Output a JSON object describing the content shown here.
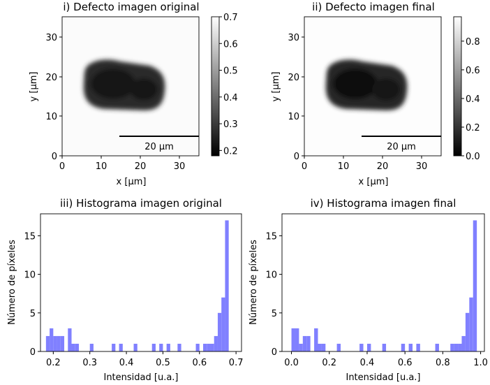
{
  "chart_data": [
    {
      "type": "heatmap",
      "title": "i) Defecto imagen original",
      "xlabel": "x [μm]",
      "ylabel": "y [μm]",
      "xlim": [
        0,
        35
      ],
      "ylim": [
        0,
        35
      ],
      "xticks": [
        0,
        10,
        20,
        30
      ],
      "yticks": [
        0,
        10,
        20,
        30
      ],
      "colormap": "gray",
      "colorbar": {
        "min": 0.18,
        "max": 0.7,
        "ticks": [
          "0.2",
          "0.3",
          "0.4",
          "0.5",
          "0.6",
          "0.7"
        ],
        "tick_values": [
          0.2,
          0.3,
          0.4,
          0.5,
          0.6,
          0.7
        ]
      },
      "scalebar": {
        "label": "20 μm",
        "x_from": 14.5,
        "x_to": 34.5,
        "y": 5
      }
    },
    {
      "type": "heatmap",
      "title": "ii) Defecto imagen final",
      "xlabel": "x [μm]",
      "ylabel": "y [μm]",
      "xlim": [
        0,
        35
      ],
      "ylim": [
        0,
        35
      ],
      "xticks": [
        0,
        10,
        20,
        30
      ],
      "yticks": [
        0,
        10,
        20,
        30
      ],
      "colormap": "gray",
      "colorbar": {
        "min": 0.0,
        "max": 0.97,
        "ticks": [
          "0.0",
          "0.2",
          "0.4",
          "0.6",
          "0.8"
        ],
        "tick_values": [
          0.0,
          0.2,
          0.4,
          0.6,
          0.8
        ]
      },
      "scalebar": {
        "label": "20 μm",
        "x_from": 14.5,
        "x_to": 34.5,
        "y": 5
      }
    },
    {
      "type": "bar",
      "title": "iii) Histograma imagen original",
      "xlabel": "Intensidad [u.a.]",
      "ylabel": "Número de píxeles",
      "xlim": [
        0.165,
        0.715
      ],
      "ylim": [
        0,
        17.85
      ],
      "xticks": [
        "0.2",
        "0.3",
        "0.4",
        "0.5",
        "0.6",
        "0.7"
      ],
      "xtick_values": [
        0.2,
        0.3,
        0.4,
        0.5,
        0.6,
        0.7
      ],
      "yticks": [
        "0",
        "5",
        "10",
        "15"
      ],
      "ytick_values": [
        0,
        5,
        10,
        15
      ],
      "color": "#8080ff",
      "bin_edges": [
        0.18,
        0.19,
        0.2,
        0.21,
        0.22,
        0.23,
        0.24,
        0.25,
        0.26,
        0.27,
        0.28,
        0.29,
        0.3,
        0.31,
        0.32,
        0.33,
        0.34,
        0.35,
        0.36,
        0.37,
        0.38,
        0.39,
        0.4,
        0.41,
        0.42,
        0.43,
        0.44,
        0.45,
        0.46,
        0.47,
        0.48,
        0.49,
        0.5,
        0.51,
        0.52,
        0.53,
        0.54,
        0.55,
        0.56,
        0.57,
        0.58,
        0.59,
        0.6,
        0.61,
        0.62,
        0.63,
        0.64,
        0.65,
        0.66,
        0.67,
        0.68,
        0.69,
        0.7
      ],
      "counts": [
        2,
        3,
        2,
        2,
        2,
        0,
        3,
        1,
        1,
        0,
        0,
        0,
        1,
        0,
        0,
        0,
        0,
        0,
        1,
        0,
        1,
        0,
        0,
        0,
        1,
        0,
        0,
        0,
        0,
        1,
        0,
        1,
        0,
        1,
        0,
        0,
        1,
        0,
        0,
        0,
        0,
        1,
        0,
        1,
        1,
        1,
        2,
        5,
        7,
        17,
        0,
        0
      ]
    },
    {
      "type": "bar",
      "title": "iv) Histograma imagen final",
      "xlabel": "Intensidad [u.a.]",
      "ylabel": "Número de píxeles",
      "xlim": [
        -0.05,
        1.02
      ],
      "ylim": [
        0,
        17.85
      ],
      "xticks": [
        "0.0",
        "0.2",
        "0.4",
        "0.6",
        "0.8",
        "1.0"
      ],
      "xtick_values": [
        0.0,
        0.2,
        0.4,
        0.6,
        0.8,
        1.0
      ],
      "yticks": [
        "0",
        "5",
        "10",
        "15"
      ],
      "ytick_values": [
        0,
        5,
        10,
        15
      ],
      "color": "#8080ff",
      "bin_edges": [
        0.0,
        0.02,
        0.04,
        0.06,
        0.08,
        0.1,
        0.12,
        0.14,
        0.16,
        0.18,
        0.2,
        0.22,
        0.24,
        0.26,
        0.28,
        0.3,
        0.32,
        0.34,
        0.36,
        0.38,
        0.4,
        0.42,
        0.44,
        0.46,
        0.48,
        0.5,
        0.52,
        0.54,
        0.56,
        0.58,
        0.6,
        0.62,
        0.64,
        0.66,
        0.68,
        0.7,
        0.72,
        0.74,
        0.76,
        0.78,
        0.8,
        0.82,
        0.84,
        0.86,
        0.88,
        0.9,
        0.92,
        0.94,
        0.96,
        0.98
      ],
      "counts": [
        3,
        3,
        1,
        2,
        2,
        0,
        3,
        1,
        1,
        0,
        0,
        0,
        1,
        0,
        0,
        0,
        0,
        0,
        1,
        0,
        1,
        0,
        0,
        0,
        1,
        0,
        0,
        0,
        0,
        1,
        0,
        1,
        0,
        1,
        0,
        0,
        0,
        0,
        1,
        0,
        0,
        0,
        1,
        1,
        1,
        2,
        5,
        7,
        17
      ]
    }
  ]
}
